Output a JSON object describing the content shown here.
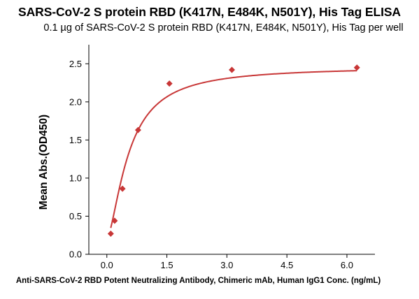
{
  "chart_data": {
    "type": "scatter",
    "title": "SARS-CoV-2 S protein RBD (K417N, E484K, N501Y), His Tag ELISA",
    "subtitle": "0.1 µg of SARS-CoV-2 S protein RBD (K417N, E484K, N501Y), His Tag per well",
    "xlabel": "Anti-SARS-CoV-2 RBD Potent Neutralizing Antibody, Chimeric mAb, Human IgG1 Conc. (ng/mL)",
    "ylabel": "Mean Abs.(OD450)",
    "xlim": [
      -0.45,
      6.7
    ],
    "ylim": [
      0,
      2.75
    ],
    "xticks": [
      "0.0",
      "1.5",
      "3.0",
      "4.5",
      "6.0"
    ],
    "xtick_values": [
      0,
      1.5,
      3.0,
      4.5,
      6.0
    ],
    "yticks": [
      "0.0",
      "0.5",
      "1.0",
      "1.5",
      "2.0",
      "2.5"
    ],
    "ytick_values": [
      0,
      0.5,
      1.0,
      1.5,
      2.0,
      2.5
    ],
    "grid": false,
    "series": [
      {
        "x": [
          0.098,
          0.195,
          0.391,
          0.781,
          1.563,
          3.125,
          6.25
        ],
        "y": [
          0.27,
          0.44,
          0.86,
          1.63,
          2.24,
          2.42,
          2.45
        ],
        "marker": "diamond",
        "color": "#c83737",
        "fit_line": true
      }
    ]
  }
}
